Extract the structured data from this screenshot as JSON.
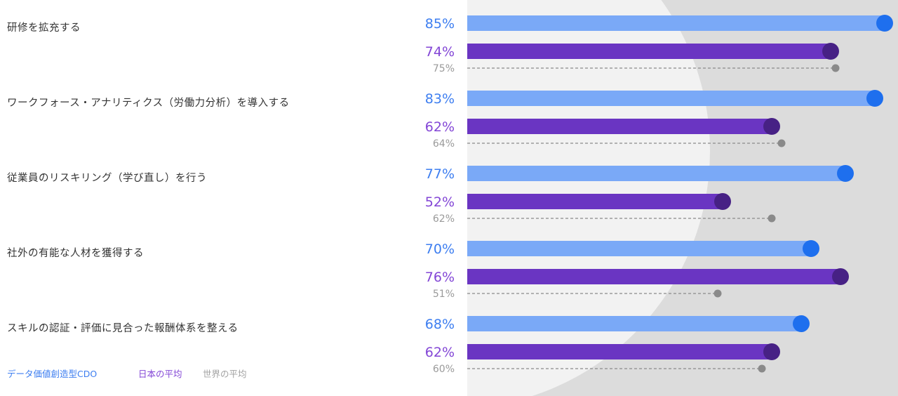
{
  "chart_data": {
    "type": "bar",
    "orientation": "horizontal",
    "categories": [
      "研修を拡充する",
      "ワークフォース・アナリティクス（労働力分析）を導入する",
      "従業員のリスキリング（学び直し）を行う",
      "社外の有能な人材を獲得する",
      "スキルの認証・評価に見合った報酬体系を整える"
    ],
    "series": [
      {
        "name": "データ価値創造型CDO",
        "values": [
          85,
          83,
          77,
          70,
          68
        ],
        "labels": [
          "85%",
          "83%",
          "77%",
          "70%",
          "68%"
        ],
        "color": "#7aa9f7",
        "dot_color": "#1e6fee",
        "label_color": "#3d7ef0"
      },
      {
        "name": "日本の平均",
        "values": [
          74,
          62,
          52,
          76,
          62
        ],
        "labels": [
          "74%",
          "62%",
          "52%",
          "76%",
          "62%"
        ],
        "color": "#6a35c2",
        "dot_color": "#472185",
        "label_color": "#8346d6"
      },
      {
        "name": "世界の平均",
        "values": [
          75,
          64,
          62,
          51,
          60
        ],
        "labels": [
          "75%",
          "64%",
          "62%",
          "51%",
          "60%"
        ],
        "color": "#8a8a8a",
        "dot_color": "#8a8a8a",
        "label_color": "#9a9a9a"
      }
    ],
    "xlim": [
      0,
      88
    ],
    "unit": "%",
    "grid": false,
    "legend_position": "bottom-left"
  },
  "legend": {
    "items": [
      {
        "label": "データ価値創造型CDO",
        "color": "#3d7ef0"
      },
      {
        "label": "日本の平均",
        "color": "#8346d6"
      },
      {
        "label": "世界の平均",
        "color": "#a0a0a0"
      }
    ]
  },
  "background": {
    "panel_color": "#dcdcdc",
    "circle_color": "#f2f2f2"
  }
}
